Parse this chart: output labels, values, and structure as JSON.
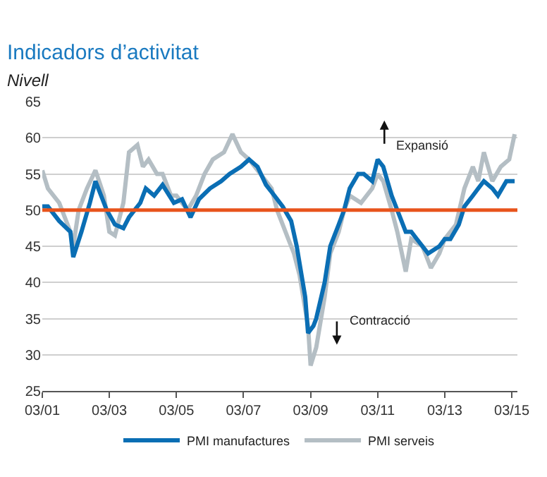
{
  "chart_data": {
    "type": "line",
    "title": "Indicadors d’activitat",
    "ylabel": "Nivell",
    "annotations": [
      "Expansió",
      "Contracció"
    ],
    "xlim": [
      "2001-03-01",
      "2015-05-01"
    ],
    "xticks": [
      {
        "value": "2001-03-01",
        "label": "03/01"
      },
      {
        "value": "2003-03-01",
        "label": "03/03"
      },
      {
        "value": "2005-03-01",
        "label": "03/05"
      },
      {
        "value": "2007-03-01",
        "label": "03/07"
      },
      {
        "value": "2009-03-01",
        "label": "03/09"
      },
      {
        "value": "2011-03-01",
        "label": "03/11"
      },
      {
        "value": "2013-03-01",
        "label": "03/13"
      },
      {
        "value": "2015-03-01",
        "label": "03/15"
      }
    ],
    "ylim": [
      25,
      65
    ],
    "yticks": [
      25,
      30,
      35,
      40,
      45,
      50,
      55,
      60,
      65
    ],
    "grid": "y",
    "legend": "bottom",
    "marker": "none",
    "line_style": "solid",
    "ref_lines": [
      {
        "axis": "y",
        "value": 50,
        "label": null,
        "color": "#e8541c"
      }
    ],
    "series": [
      {
        "name": "PMI manufactures",
        "color": "#0a6eb4",
        "x": [
          "2001-03",
          "2001-05",
          "2001-09",
          "2002-01",
          "2002-02",
          "2002-05",
          "2002-08",
          "2002-10",
          "2003-02",
          "2003-05",
          "2003-08",
          "2003-10",
          "2004-02",
          "2004-04",
          "2004-07",
          "2004-10",
          "2005-02",
          "2005-05",
          "2005-08",
          "2005-11",
          "2006-03",
          "2006-07",
          "2006-10",
          "2007-02",
          "2007-05",
          "2007-08",
          "2007-11",
          "2008-02",
          "2008-05",
          "2008-08",
          "2008-10",
          "2009-01",
          "2009-02",
          "2009-04",
          "2009-05",
          "2009-08",
          "2009-10",
          "2010-01",
          "2010-03",
          "2010-05",
          "2010-08",
          "2010-10",
          "2011-01",
          "2011-03",
          "2011-05",
          "2011-08",
          "2011-10",
          "2012-01",
          "2012-03",
          "2012-05",
          "2012-09",
          "2013-01",
          "2013-03",
          "2013-05",
          "2013-08",
          "2013-10",
          "2014-01",
          "2014-03",
          "2014-05",
          "2014-08",
          "2014-10",
          "2015-01",
          "2015-04"
        ],
        "values": [
          50.5,
          50.5,
          48.5,
          47,
          43.5,
          47,
          51,
          54,
          50,
          48,
          47.5,
          49,
          51,
          53,
          52,
          53.5,
          51,
          51.5,
          49,
          51.5,
          53,
          54,
          55,
          56,
          57,
          56,
          53.5,
          52,
          50.5,
          48.5,
          45,
          38,
          33,
          34,
          35,
          40,
          45,
          48,
          50,
          53,
          55,
          55,
          54,
          57,
          56,
          52,
          50,
          47,
          47,
          46,
          44,
          45,
          46,
          46,
          48,
          50.5,
          52,
          53,
          54,
          53,
          52,
          54,
          54
        ]
      },
      {
        "name": "PMI serveis",
        "color": "#b4bec4",
        "x": [
          "2001-03",
          "2001-05",
          "2001-09",
          "2002-01",
          "2002-02",
          "2002-04",
          "2002-07",
          "2002-10",
          "2003-01",
          "2003-03",
          "2003-05",
          "2003-08",
          "2003-10",
          "2004-01",
          "2004-03",
          "2004-05",
          "2004-08",
          "2004-10",
          "2005-01",
          "2005-03",
          "2005-07",
          "2005-10",
          "2006-01",
          "2006-04",
          "2006-08",
          "2006-11",
          "2007-02",
          "2007-05",
          "2007-09",
          "2008-01",
          "2008-03",
          "2008-07",
          "2008-09",
          "2008-11",
          "2009-02",
          "2009-03",
          "2009-05",
          "2009-08",
          "2009-10",
          "2010-01",
          "2010-03",
          "2010-05",
          "2010-09",
          "2011-01",
          "2011-03",
          "2011-05",
          "2011-08",
          "2011-10",
          "2012-01",
          "2012-03",
          "2012-07",
          "2012-10",
          "2013-01",
          "2013-03",
          "2013-07",
          "2013-10",
          "2014-01",
          "2014-03",
          "2014-05",
          "2014-08",
          "2014-11",
          "2015-02",
          "2015-04"
        ],
        "values": [
          55.5,
          53,
          51,
          47,
          45,
          50,
          53,
          55.5,
          52,
          47,
          46.5,
          51,
          58,
          59,
          56,
          57,
          55,
          55,
          52,
          52,
          50,
          52,
          55,
          57,
          58,
          60.5,
          58,
          57,
          55,
          53,
          50,
          46,
          44,
          41,
          34,
          28.5,
          31,
          38,
          44,
          47,
          50,
          52,
          51,
          53,
          55,
          54,
          50,
          47,
          41.5,
          46,
          45,
          42,
          44,
          46,
          48,
          53,
          56,
          54,
          58,
          54,
          56,
          57,
          60.5
        ]
      }
    ]
  }
}
